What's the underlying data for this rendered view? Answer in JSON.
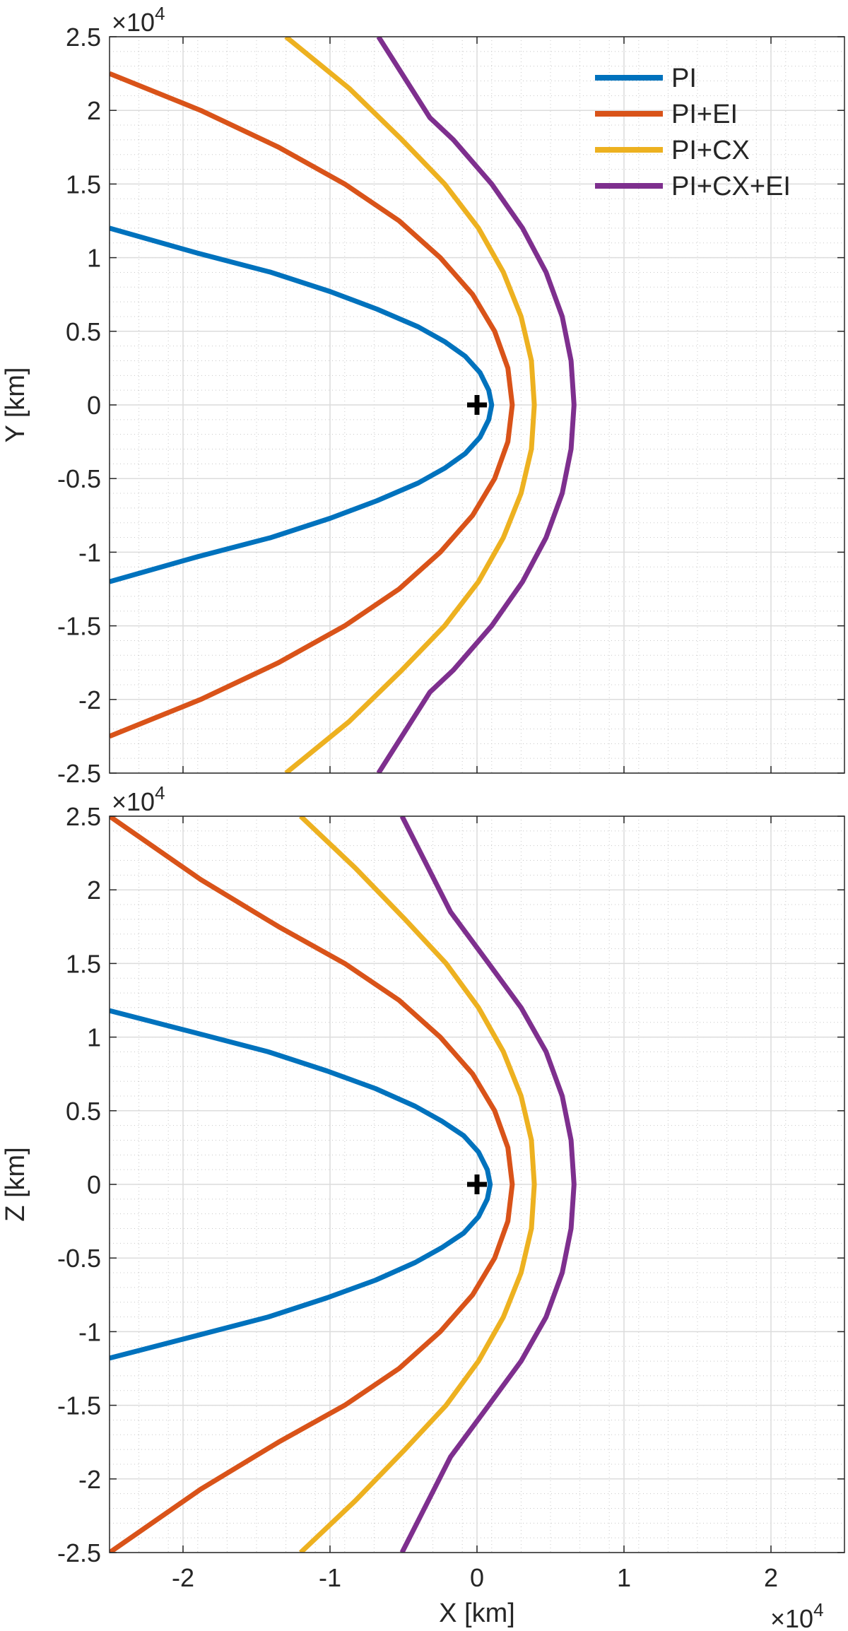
{
  "chart_data": [
    {
      "type": "line",
      "xlabel": "",
      "ylabel": "Y [km]",
      "y_multiplier": {
        "base": "×10",
        "exp": "4"
      },
      "xlim": [
        -25000,
        25000
      ],
      "ylim": [
        -25000,
        25000
      ],
      "xticks": [
        -20000,
        -10000,
        0,
        10000,
        20000
      ],
      "xtick_labels": [
        "",
        "",
        "",
        "",
        ""
      ],
      "yticks": [
        25000,
        20000,
        15000,
        10000,
        5000,
        0,
        -5000,
        -10000,
        -15000,
        -20000,
        -25000
      ],
      "ytick_labels": [
        "2.5",
        "2",
        "1.5",
        "1",
        "0.5",
        "0",
        "-0.5",
        "-1",
        "-1.5",
        "-2",
        "-2.5"
      ],
      "grid": true,
      "minor_grid": true,
      "legend": {
        "placement": "top-right"
      },
      "marker": {
        "symbol": "+",
        "x": 0,
        "y": 0,
        "color": "#000000"
      },
      "series": [
        {
          "name": "PI",
          "color": "#0072BD",
          "x0": 1000,
          "x": [
            1000,
            800,
            200,
            -800,
            -2200,
            -4000,
            -6800,
            -10000,
            -14000,
            -19000,
            -25000
          ],
          "y": [
            0,
            1000,
            2200,
            3300,
            4300,
            5300,
            6500,
            7700,
            9000,
            10300,
            12000
          ]
        },
        {
          "name": "PI+EI",
          "color": "#D95319",
          "x0": 2400,
          "x": [
            2400,
            2100,
            1200,
            -300,
            -2500,
            -5300,
            -9000,
            -13500,
            -18800,
            -25000
          ],
          "y": [
            0,
            2500,
            5000,
            7500,
            10000,
            12500,
            15000,
            17500,
            20000,
            22500
          ]
        },
        {
          "name": "PI+CX",
          "color": "#EDB120",
          "x0": 3900,
          "x": [
            3900,
            3700,
            3000,
            1800,
            100,
            -2200,
            -5100,
            -8700,
            -13000
          ],
          "y": [
            0,
            3000,
            6000,
            9000,
            12000,
            15000,
            18000,
            21500,
            25000
          ]
        },
        {
          "name": "PI+CX+EI",
          "color": "#7E2F8E",
          "x0": 6600,
          "x": [
            6600,
            6400,
            5800,
            4700,
            3100,
            1000,
            -1600,
            -3200,
            -6700
          ],
          "y": [
            0,
            3000,
            6000,
            9000,
            12000,
            15000,
            18000,
            19500,
            25000
          ]
        }
      ]
    },
    {
      "type": "line",
      "xlabel": "X [km]",
      "ylabel": "Z [km]",
      "y_multiplier": {
        "base": "×10",
        "exp": "4"
      },
      "x_multiplier": {
        "base": "×10",
        "exp": "4"
      },
      "xlim": [
        -25000,
        25000
      ],
      "ylim": [
        -25000,
        25000
      ],
      "xticks": [
        -20000,
        -10000,
        0,
        10000,
        20000
      ],
      "xtick_labels": [
        "-2",
        "-1",
        "0",
        "1",
        "2"
      ],
      "yticks": [
        25000,
        20000,
        15000,
        10000,
        5000,
        0,
        -5000,
        -10000,
        -15000,
        -20000,
        -25000
      ],
      "ytick_labels": [
        "2.5",
        "2",
        "1.5",
        "1",
        "0.5",
        "0",
        "-0.5",
        "-1",
        "-1.5",
        "-2",
        "-2.5"
      ],
      "grid": true,
      "minor_grid": true,
      "marker": {
        "symbol": "+",
        "x": 0,
        "y": 0,
        "color": "#000000"
      },
      "series": [
        {
          "name": "PI",
          "color": "#0072BD",
          "x0": 900,
          "x": [
            900,
            700,
            100,
            -900,
            -2400,
            -4200,
            -6900,
            -10200,
            -14200,
            -19200,
            -25000
          ],
          "y": [
            0,
            1000,
            2200,
            3300,
            4300,
            5300,
            6500,
            7700,
            9000,
            10300,
            11800
          ]
        },
        {
          "name": "PI+EI",
          "color": "#D95319",
          "x0": 2400,
          "x": [
            2400,
            2100,
            1200,
            -300,
            -2500,
            -5300,
            -9000,
            -13500,
            -18800,
            -25000
          ],
          "y": [
            0,
            2500,
            5000,
            7500,
            10000,
            12500,
            15000,
            17500,
            20700,
            25000
          ]
        },
        {
          "name": "PI+CX",
          "color": "#EDB120",
          "x0": 3900,
          "x": [
            3900,
            3700,
            3000,
            1800,
            100,
            -2100,
            -4900,
            -8300,
            -12000
          ],
          "y": [
            0,
            3000,
            6000,
            9000,
            12000,
            15000,
            18000,
            21500,
            25000
          ]
        },
        {
          "name": "PI+CX+EI",
          "color": "#7E2F8E",
          "x0": 6600,
          "x": [
            6600,
            6400,
            5800,
            4700,
            3000,
            800,
            -1800,
            -5100
          ],
          "y": [
            0,
            3000,
            6000,
            9000,
            12000,
            15000,
            18500,
            25000
          ]
        }
      ]
    }
  ]
}
